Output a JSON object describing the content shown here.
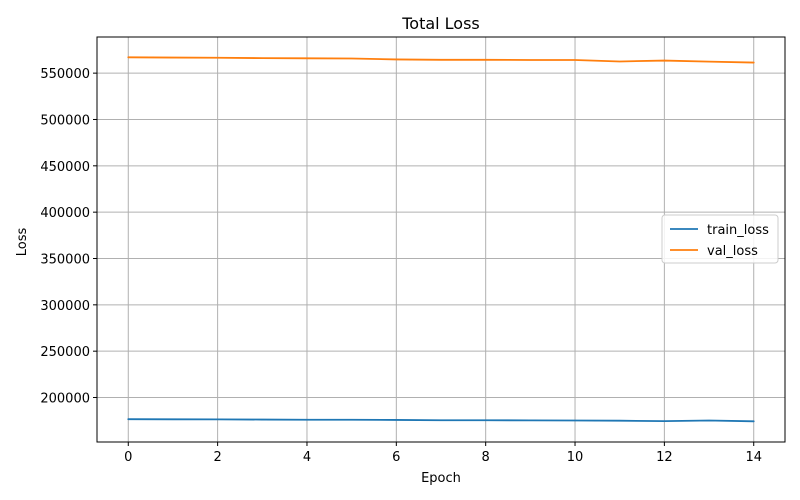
{
  "chart_data": {
    "type": "line",
    "title": "Total Loss",
    "xlabel": "Epoch",
    "ylabel": "Loss",
    "x": [
      0,
      1,
      2,
      3,
      4,
      5,
      6,
      7,
      8,
      9,
      10,
      11,
      12,
      13,
      14
    ],
    "xlim": [
      -0.7,
      14.7
    ],
    "ylim": [
      152000,
      589000
    ],
    "xticks": [
      0,
      2,
      4,
      6,
      8,
      10,
      12,
      14
    ],
    "yticks": [
      200000,
      250000,
      300000,
      350000,
      400000,
      450000,
      500000,
      550000
    ],
    "grid": true,
    "legend_position": "center-right",
    "series": [
      {
        "name": "train_loss",
        "color": "#1f77b4",
        "values": [
          176600,
          176500,
          176400,
          176200,
          176000,
          176000,
          175800,
          175500,
          175500,
          175300,
          175200,
          175000,
          174500,
          175200,
          174300
        ]
      },
      {
        "name": "val_loss",
        "color": "#ff7f0e",
        "values": [
          567100,
          566800,
          566600,
          566200,
          566000,
          565800,
          564800,
          564400,
          564400,
          564200,
          564200,
          562600,
          563600,
          562400,
          561400
        ]
      }
    ]
  }
}
